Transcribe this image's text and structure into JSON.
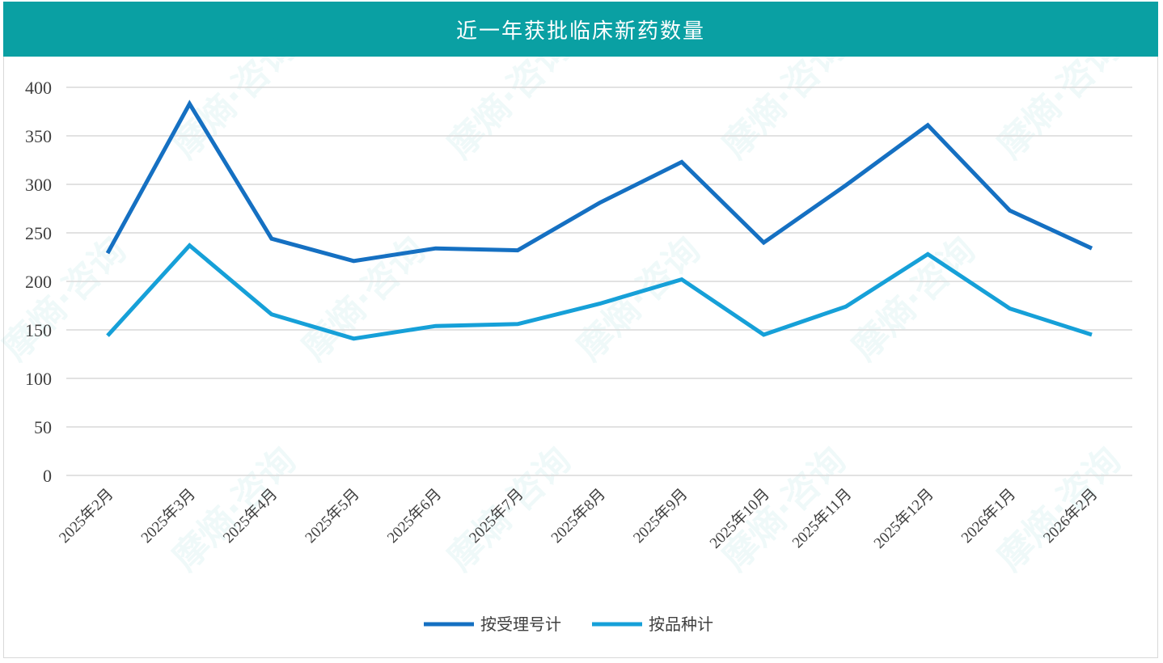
{
  "title": "近一年获批临床新药数量",
  "watermark": "摩熵·咨询",
  "colors": {
    "header": "#0aa0a3",
    "series1": "#1570c2",
    "series2": "#16a0d8",
    "grid": "#d9d9d9"
  },
  "chart_data": {
    "type": "line",
    "title": "近一年获批临床新药数量",
    "xlabel": "",
    "ylabel": "",
    "ylim": [
      0,
      400
    ],
    "yticks": [
      0,
      50,
      100,
      150,
      200,
      250,
      300,
      350,
      400
    ],
    "grid": true,
    "legend_position": "bottom",
    "categories": [
      "2025年2月",
      "2025年3月",
      "2025年4月",
      "2025年5月",
      "2025年6月",
      "2025年7月",
      "2025年8月",
      "2025年9月",
      "2025年10月",
      "2025年11月",
      "2025年12月",
      "2026年1月",
      "2026年2月"
    ],
    "series": [
      {
        "name": "按受理号计",
        "color": "#1570c2",
        "values": [
          229,
          383,
          244,
          221,
          234,
          232,
          281,
          323,
          240,
          299,
          361,
          273,
          234
        ]
      },
      {
        "name": "按品种计",
        "color": "#16a0d8",
        "values": [
          144,
          237,
          166,
          141,
          154,
          156,
          177,
          202,
          145,
          174,
          228,
          172,
          145
        ]
      }
    ]
  }
}
